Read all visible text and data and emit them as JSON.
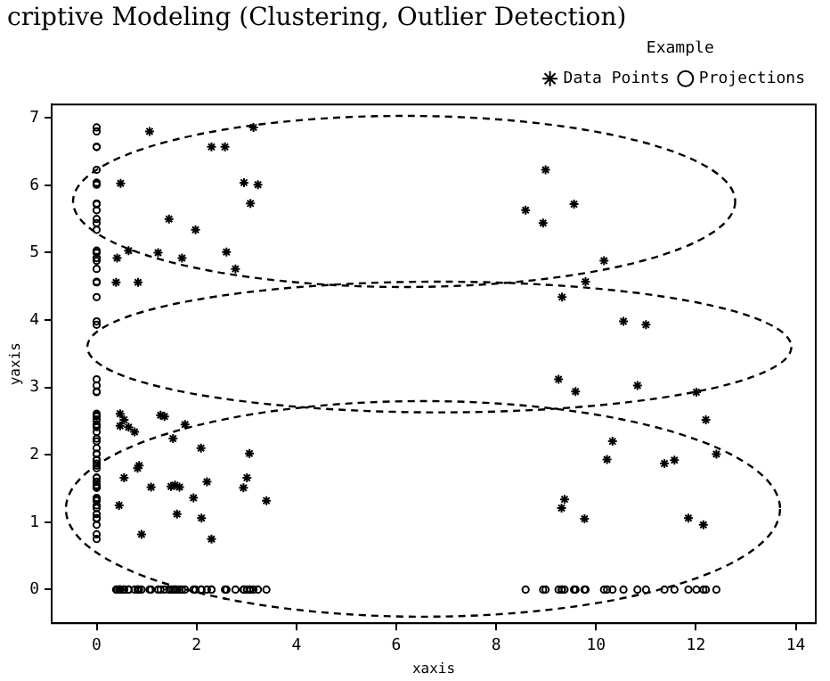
{
  "chart_data": {
    "type": "scatter",
    "title": "criptive Modeling (Clustering, Outlier Detection)",
    "xlabel": "xaxis",
    "ylabel": "yaxis",
    "legend_title": "Example",
    "legend": "top right",
    "grid": false,
    "xlim": [
      -0.9,
      14.4
    ],
    "ylim": [
      -0.5,
      7.2
    ],
    "xticks": [
      0,
      2,
      4,
      6,
      8,
      10,
      12,
      14
    ],
    "yticks": [
      0,
      1,
      2,
      3,
      4,
      5,
      6,
      7
    ],
    "series": [
      {
        "name": "Data Points",
        "type": "scatter",
        "marker": "cross",
        "color": "#000000",
        "x": [
          1.06,
          3.14,
          2.3,
          2.57,
          0.48,
          2.95,
          3.23,
          3.08,
          1.45,
          1.98,
          0.64,
          0.41,
          1.23,
          1.71,
          2.6,
          2.78,
          0.39,
          0.83,
          8.99,
          8.59,
          9.56,
          8.94,
          10.16,
          9.79,
          9.32,
          10.55,
          11.0,
          9.25,
          9.59,
          10.83,
          12.01,
          12.2,
          10.33,
          10.22,
          11.37,
          11.57,
          12.41,
          9.37,
          9.31,
          9.77,
          11.85,
          12.15,
          0.47,
          0.55,
          0.47,
          0.64,
          0.76,
          1.28,
          1.36,
          1.77,
          1.53,
          2.09,
          3.06,
          0.85,
          0.82,
          0.55,
          1.09,
          1.49,
          1.57,
          1.66,
          2.21,
          3.01,
          2.94,
          1.94,
          0.45,
          3.4,
          1.61,
          2.1,
          0.9,
          2.3
        ],
        "values": [
          6.8,
          6.86,
          6.57,
          6.57,
          6.03,
          6.04,
          6.01,
          5.73,
          5.5,
          5.34,
          5.03,
          4.92,
          5.0,
          4.92,
          5.01,
          4.76,
          4.56,
          4.56,
          6.23,
          5.63,
          5.72,
          5.44,
          4.88,
          4.57,
          4.34,
          3.98,
          3.93,
          3.12,
          2.94,
          3.03,
          2.93,
          2.52,
          2.2,
          1.93,
          1.87,
          1.92,
          2.01,
          1.34,
          1.21,
          1.05,
          1.06,
          0.96,
          2.61,
          2.52,
          2.43,
          2.41,
          2.34,
          2.59,
          2.57,
          2.45,
          2.24,
          2.1,
          2.02,
          1.84,
          1.8,
          1.66,
          1.52,
          1.53,
          1.55,
          1.52,
          1.6,
          1.66,
          1.51,
          1.36,
          1.25,
          1.32,
          1.12,
          1.06,
          0.82,
          0.75
        ]
      },
      {
        "name": "Projections",
        "type": "scatter",
        "marker": "circle",
        "color": "#000000",
        "x": [
          0,
          0,
          0,
          0,
          0,
          0,
          0,
          0,
          0,
          0,
          0,
          0,
          0,
          0,
          0,
          0,
          0,
          0,
          0,
          0,
          0,
          0,
          0,
          0,
          0,
          0,
          0,
          0,
          0,
          0,
          0,
          0,
          0,
          0,
          0,
          0,
          0,
          0,
          0,
          0,
          0,
          0,
          0,
          0,
          0,
          0,
          0,
          0,
          0,
          0,
          0,
          0,
          0,
          0,
          0,
          0,
          0,
          0,
          0,
          0,
          0,
          0,
          0,
          0,
          0,
          0,
          0,
          0,
          0,
          0,
          1.06,
          3.14,
          2.3,
          2.57,
          0.48,
          2.95,
          3.23,
          3.08,
          1.45,
          1.98,
          0.64,
          0.41,
          1.23,
          1.71,
          2.6,
          2.78,
          0.39,
          0.83,
          8.99,
          8.59,
          9.56,
          8.94,
          10.16,
          9.79,
          9.32,
          10.55,
          11.0,
          9.25,
          9.59,
          10.83,
          12.01,
          12.2,
          10.33,
          10.22,
          11.37,
          11.57,
          12.41,
          9.37,
          9.31,
          9.77,
          11.85,
          12.15,
          0.47,
          0.55,
          0.47,
          0.64,
          0.76,
          1.28,
          1.36,
          1.77,
          1.53,
          2.09,
          3.06,
          0.85,
          0.82,
          0.55,
          1.09,
          1.49,
          1.57,
          1.66,
          2.21,
          3.01,
          2.94,
          1.94,
          0.45,
          3.4,
          1.61,
          2.1,
          0.9,
          2.3
        ],
        "values": [
          6.8,
          6.86,
          6.57,
          6.57,
          6.03,
          6.04,
          6.01,
          5.73,
          5.5,
          5.34,
          5.03,
          4.92,
          5.0,
          4.92,
          5.01,
          4.76,
          4.56,
          4.56,
          6.23,
          5.63,
          5.72,
          5.44,
          4.88,
          4.57,
          4.34,
          3.98,
          3.93,
          3.12,
          2.94,
          3.03,
          2.93,
          2.52,
          2.2,
          1.93,
          1.87,
          1.92,
          2.01,
          1.34,
          1.21,
          1.05,
          1.06,
          0.96,
          2.61,
          2.52,
          2.43,
          2.41,
          2.34,
          2.59,
          2.57,
          2.45,
          2.24,
          2.1,
          2.02,
          1.84,
          1.8,
          1.66,
          1.52,
          1.53,
          1.55,
          1.52,
          1.6,
          1.66,
          1.51,
          1.36,
          1.25,
          1.32,
          1.12,
          1.06,
          0.82,
          0.75,
          0,
          0,
          0,
          0,
          0,
          0,
          0,
          0,
          0,
          0,
          0,
          0,
          0,
          0,
          0,
          0,
          0,
          0,
          0,
          0,
          0,
          0,
          0,
          0,
          0,
          0,
          0,
          0,
          0,
          0,
          0,
          0,
          0,
          0,
          0,
          0,
          0,
          0,
          0,
          0,
          0,
          0,
          0,
          0,
          0,
          0,
          0,
          0,
          0,
          0,
          0,
          0,
          0,
          0,
          0,
          0,
          0,
          0,
          0,
          0,
          0,
          0,
          0,
          0,
          0,
          0,
          0,
          0,
          0,
          0
        ]
      }
    ]
  }
}
